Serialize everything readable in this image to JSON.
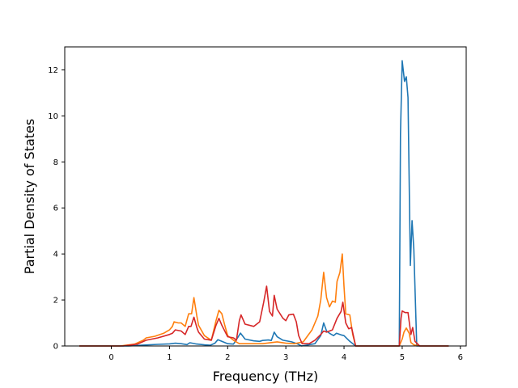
{
  "chart_data": {
    "type": "line",
    "xlabel": "Frequency (THz)",
    "ylabel": "Partial Density of States",
    "xlim": [
      -0.8,
      6.1
    ],
    "ylim": [
      0,
      13
    ],
    "xticks": [
      0,
      1,
      2,
      3,
      4,
      5,
      6
    ],
    "yticks": [
      0,
      2,
      4,
      6,
      8,
      10,
      12
    ],
    "grid": false,
    "series": [
      {
        "color": "#1f77b4",
        "points": [
          [
            -0.55,
            0
          ],
          [
            0.3,
            0
          ],
          [
            0.55,
            0.04
          ],
          [
            0.8,
            0.07
          ],
          [
            1.0,
            0.09
          ],
          [
            1.1,
            0.12
          ],
          [
            1.2,
            0.1
          ],
          [
            1.3,
            0.06
          ],
          [
            1.35,
            0.14
          ],
          [
            1.45,
            0.09
          ],
          [
            1.6,
            0.05
          ],
          [
            1.7,
            0.03
          ],
          [
            1.78,
            0.12
          ],
          [
            1.83,
            0.27
          ],
          [
            1.9,
            0.2
          ],
          [
            2.0,
            0.1
          ],
          [
            2.1,
            0.08
          ],
          [
            2.17,
            0.35
          ],
          [
            2.22,
            0.56
          ],
          [
            2.3,
            0.3
          ],
          [
            2.45,
            0.22
          ],
          [
            2.55,
            0.2
          ],
          [
            2.6,
            0.24
          ],
          [
            2.7,
            0.26
          ],
          [
            2.75,
            0.24
          ],
          [
            2.8,
            0.6
          ],
          [
            2.85,
            0.4
          ],
          [
            2.95,
            0.25
          ],
          [
            3.1,
            0.18
          ],
          [
            3.2,
            0.09
          ],
          [
            3.27,
            0
          ],
          [
            3.5,
            0.1
          ],
          [
            3.6,
            0.45
          ],
          [
            3.65,
            1.0
          ],
          [
            3.7,
            0.65
          ],
          [
            3.75,
            0.55
          ],
          [
            3.82,
            0.45
          ],
          [
            3.87,
            0.55
          ],
          [
            3.95,
            0.48
          ],
          [
            4.0,
            0.45
          ],
          [
            4.1,
            0.2
          ],
          [
            4.2,
            0
          ],
          [
            4.95,
            0
          ],
          [
            4.97,
            9.2
          ],
          [
            5.0,
            12.4
          ],
          [
            5.04,
            11.5
          ],
          [
            5.07,
            11.7
          ],
          [
            5.1,
            10.8
          ],
          [
            5.14,
            3.5
          ],
          [
            5.17,
            5.45
          ],
          [
            5.2,
            4.2
          ],
          [
            5.25,
            0
          ],
          [
            5.8,
            0
          ]
        ]
      },
      {
        "color": "#ff7f0e",
        "points": [
          [
            -0.55,
            0
          ],
          [
            0.15,
            0
          ],
          [
            0.4,
            0.08
          ],
          [
            0.55,
            0.25
          ],
          [
            0.6,
            0.35
          ],
          [
            0.75,
            0.42
          ],
          [
            0.9,
            0.55
          ],
          [
            1.0,
            0.7
          ],
          [
            1.05,
            0.85
          ],
          [
            1.08,
            1.05
          ],
          [
            1.15,
            1.0
          ],
          [
            1.2,
            1.0
          ],
          [
            1.27,
            0.85
          ],
          [
            1.33,
            1.4
          ],
          [
            1.38,
            1.4
          ],
          [
            1.42,
            2.1
          ],
          [
            1.47,
            1.3
          ],
          [
            1.5,
            0.9
          ],
          [
            1.6,
            0.45
          ],
          [
            1.72,
            0.25
          ],
          [
            1.8,
            1.1
          ],
          [
            1.85,
            1.55
          ],
          [
            1.9,
            1.4
          ],
          [
            1.95,
            0.9
          ],
          [
            2.0,
            0.45
          ],
          [
            2.1,
            0.25
          ],
          [
            2.2,
            0.1
          ],
          [
            2.3,
            0.1
          ],
          [
            2.6,
            0.1
          ],
          [
            2.85,
            0.18
          ],
          [
            3.0,
            0.12
          ],
          [
            3.15,
            0.1
          ],
          [
            3.3,
            0.18
          ],
          [
            3.45,
            0.7
          ],
          [
            3.55,
            1.3
          ],
          [
            3.6,
            2.0
          ],
          [
            3.65,
            3.2
          ],
          [
            3.7,
            2.1
          ],
          [
            3.75,
            1.7
          ],
          [
            3.8,
            1.95
          ],
          [
            3.85,
            1.9
          ],
          [
            3.88,
            2.8
          ],
          [
            3.93,
            3.2
          ],
          [
            3.97,
            4.0
          ],
          [
            4.0,
            2.6
          ],
          [
            4.03,
            1.4
          ],
          [
            4.1,
            1.35
          ],
          [
            4.15,
            0.5
          ],
          [
            4.2,
            0
          ],
          [
            4.95,
            0
          ],
          [
            5.0,
            0.3
          ],
          [
            5.03,
            0.6
          ],
          [
            5.07,
            0.78
          ],
          [
            5.12,
            0.55
          ],
          [
            5.15,
            0.15
          ],
          [
            5.2,
            0.05
          ],
          [
            5.3,
            0
          ],
          [
            5.8,
            0
          ]
        ]
      },
      {
        "color": "#d62728",
        "points": [
          [
            -0.55,
            0
          ],
          [
            0.2,
            0
          ],
          [
            0.45,
            0.08
          ],
          [
            0.6,
            0.25
          ],
          [
            0.8,
            0.35
          ],
          [
            1.0,
            0.5
          ],
          [
            1.05,
            0.55
          ],
          [
            1.1,
            0.7
          ],
          [
            1.2,
            0.65
          ],
          [
            1.27,
            0.5
          ],
          [
            1.33,
            0.85
          ],
          [
            1.37,
            0.85
          ],
          [
            1.42,
            1.25
          ],
          [
            1.47,
            0.8
          ],
          [
            1.5,
            0.6
          ],
          [
            1.6,
            0.3
          ],
          [
            1.72,
            0.25
          ],
          [
            1.8,
            0.9
          ],
          [
            1.85,
            1.2
          ],
          [
            1.9,
            0.9
          ],
          [
            2.0,
            0.4
          ],
          [
            2.1,
            0.35
          ],
          [
            2.15,
            0.25
          ],
          [
            2.2,
            1.1
          ],
          [
            2.23,
            1.35
          ],
          [
            2.3,
            0.95
          ],
          [
            2.45,
            0.85
          ],
          [
            2.55,
            1.05
          ],
          [
            2.62,
            1.9
          ],
          [
            2.67,
            2.6
          ],
          [
            2.72,
            1.5
          ],
          [
            2.77,
            1.3
          ],
          [
            2.8,
            2.2
          ],
          [
            2.85,
            1.6
          ],
          [
            2.95,
            1.2
          ],
          [
            3.0,
            1.1
          ],
          [
            3.05,
            1.35
          ],
          [
            3.13,
            1.38
          ],
          [
            3.18,
            1.05
          ],
          [
            3.22,
            0.45
          ],
          [
            3.28,
            0.1
          ],
          [
            3.4,
            0.1
          ],
          [
            3.5,
            0.25
          ],
          [
            3.6,
            0.5
          ],
          [
            3.65,
            0.65
          ],
          [
            3.7,
            0.6
          ],
          [
            3.8,
            0.7
          ],
          [
            3.88,
            1.2
          ],
          [
            3.95,
            1.5
          ],
          [
            3.98,
            1.9
          ],
          [
            4.03,
            1.0
          ],
          [
            4.08,
            0.75
          ],
          [
            4.13,
            0.8
          ],
          [
            4.2,
            0
          ],
          [
            4.95,
            0
          ],
          [
            4.98,
            1.2
          ],
          [
            5.0,
            1.52
          ],
          [
            5.05,
            1.45
          ],
          [
            5.1,
            1.45
          ],
          [
            5.15,
            0.5
          ],
          [
            5.18,
            0.8
          ],
          [
            5.22,
            0.2
          ],
          [
            5.3,
            0
          ],
          [
            5.8,
            0
          ]
        ]
      }
    ]
  }
}
